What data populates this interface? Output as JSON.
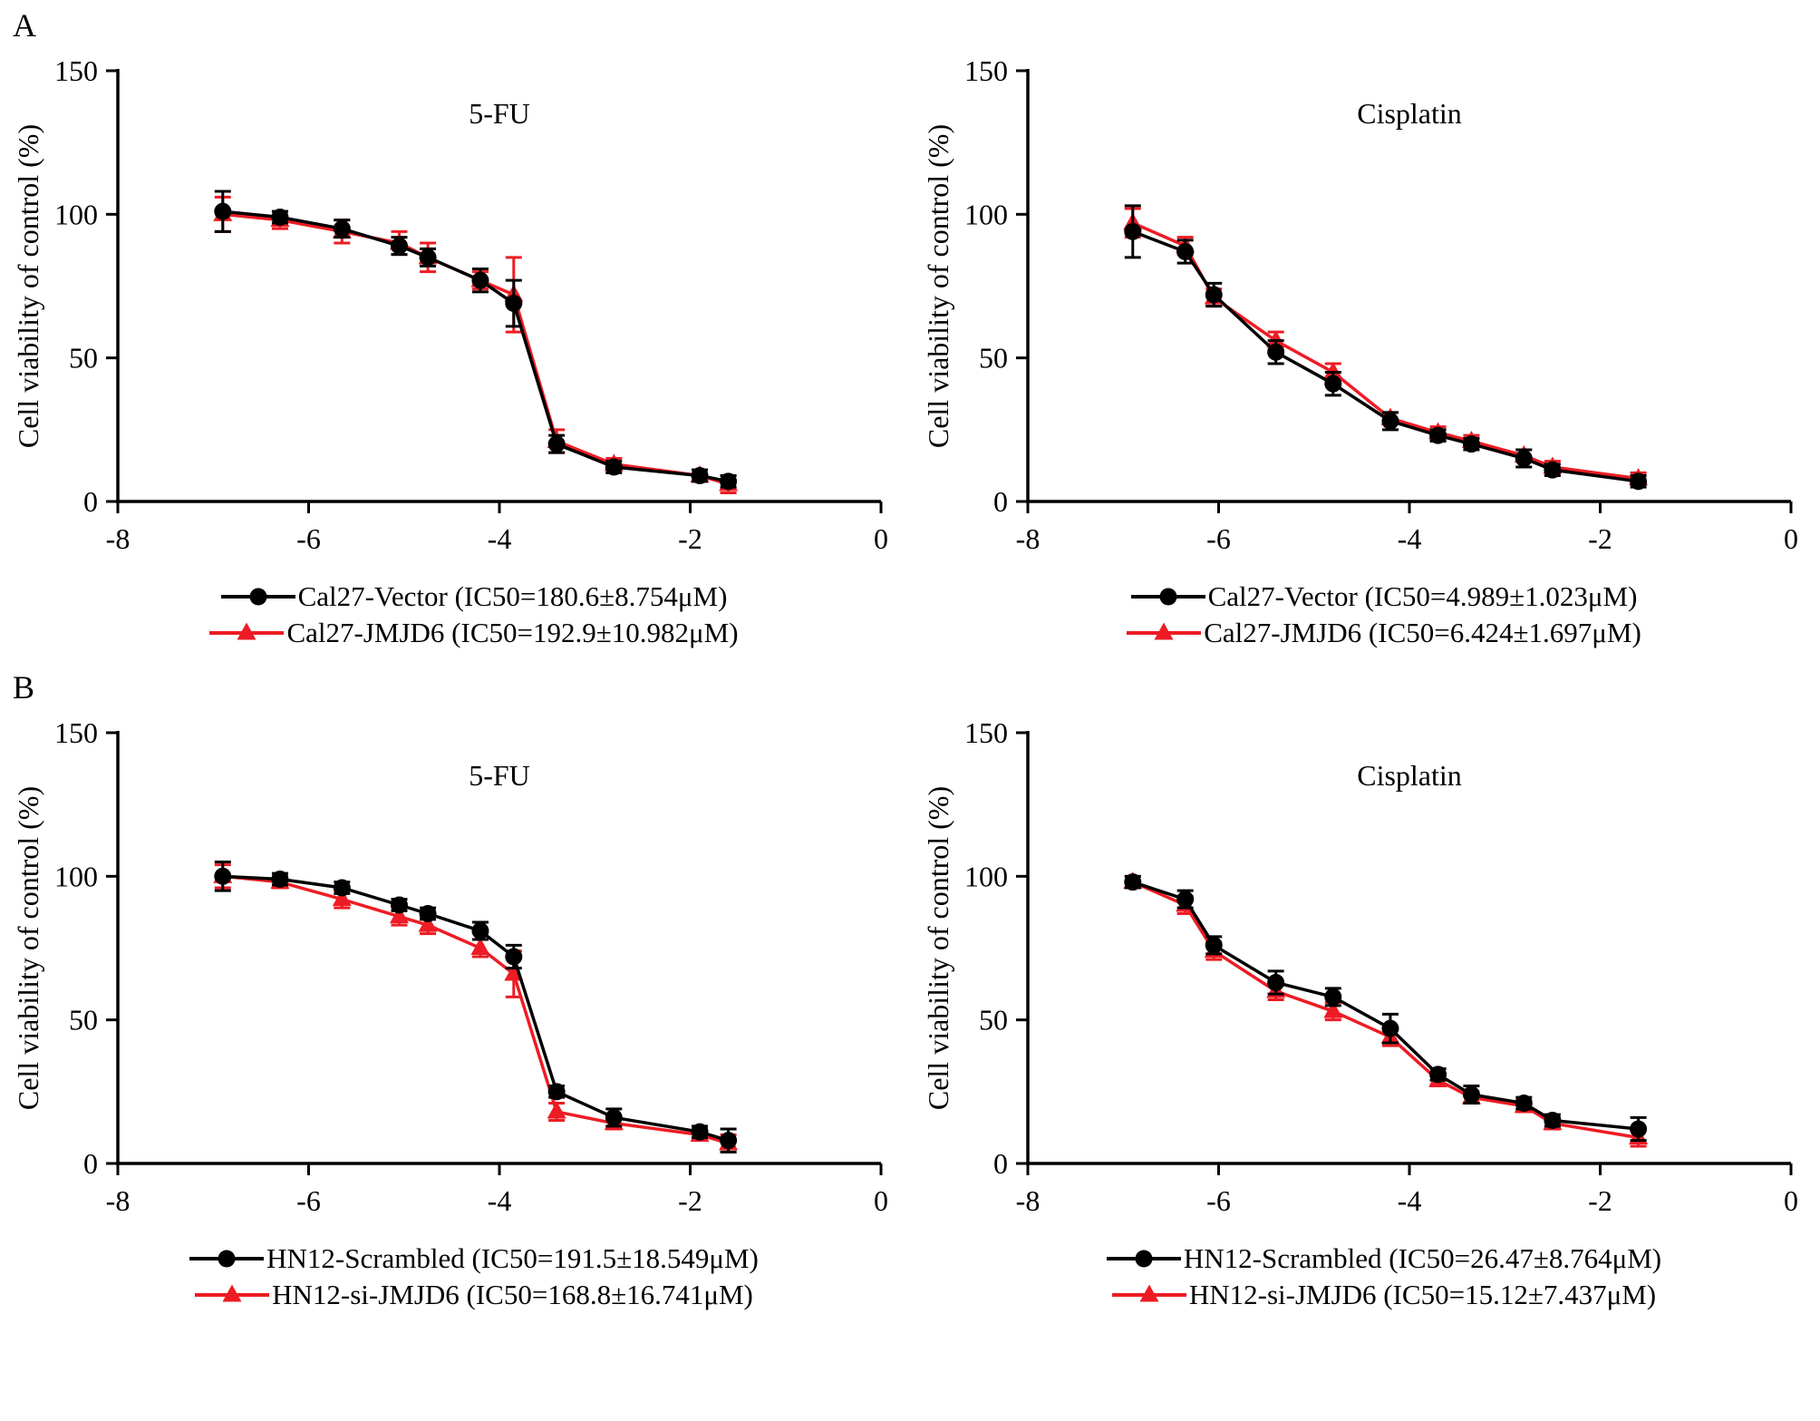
{
  "panels": [
    {
      "label": "A"
    },
    {
      "label": "B"
    }
  ],
  "colors": {
    "series_black": "#000000",
    "series_red": "#ed1c24"
  },
  "chart_data": [
    {
      "type": "line",
      "panel": "A",
      "title": "5-FU",
      "ylabel": "Cell viability of control (%)",
      "xlabel": "",
      "xlim": [
        -8,
        0
      ],
      "ylim": [
        0,
        150
      ],
      "xticks": [
        -8,
        -6,
        -4,
        -2,
        0
      ],
      "yticks": [
        0,
        50,
        100,
        150
      ],
      "grid": false,
      "legend_position": "bottom",
      "series": [
        {
          "name": "Cal27-Vector (IC50=180.6±8.754μM)",
          "color": "#000000",
          "marker": "circle",
          "x": [
            -6.9,
            -6.3,
            -5.65,
            -5.05,
            -4.75,
            -4.2,
            -3.85,
            -3.4,
            -2.8,
            -1.9,
            -1.6
          ],
          "y": [
            101,
            99,
            95,
            89,
            85,
            77,
            69,
            20,
            12,
            9,
            7
          ],
          "yerr": [
            7,
            2,
            3,
            3,
            3,
            4,
            8,
            3,
            2,
            2,
            2
          ]
        },
        {
          "name": "Cal27-JMJD6 (IC50=192.9±10.982μM)",
          "color": "#ed1c24",
          "marker": "triangle",
          "x": [
            -6.9,
            -6.3,
            -5.65,
            -5.05,
            -4.75,
            -4.2,
            -3.85,
            -3.4,
            -2.8,
            -1.9,
            -1.6
          ],
          "y": [
            100,
            98,
            94,
            90,
            85,
            77,
            72,
            21,
            13,
            9,
            6
          ],
          "yerr": [
            6,
            3,
            4,
            4,
            5,
            3,
            13,
            4,
            2,
            2,
            3
          ]
        }
      ]
    },
    {
      "type": "line",
      "panel": "A",
      "title": "Cisplatin",
      "ylabel": "Cell viability of control (%)",
      "xlabel": "",
      "xlim": [
        -8,
        0
      ],
      "ylim": [
        0,
        150
      ],
      "xticks": [
        -8,
        -6,
        -4,
        -2,
        0
      ],
      "yticks": [
        0,
        50,
        100,
        150
      ],
      "grid": false,
      "legend_position": "bottom",
      "series": [
        {
          "name": "Cal27-Vector (IC50=4.989±1.023μM)",
          "color": "#000000",
          "marker": "circle",
          "x": [
            -6.9,
            -6.35,
            -6.05,
            -5.4,
            -4.8,
            -4.2,
            -3.7,
            -3.35,
            -2.8,
            -2.5,
            -1.6
          ],
          "y": [
            94,
            87,
            72,
            52,
            41,
            28,
            23,
            20,
            15,
            11,
            7
          ],
          "yerr": [
            9,
            4,
            4,
            4,
            4,
            3,
            2,
            2,
            3,
            2,
            2
          ]
        },
        {
          "name": "Cal27-JMJD6 (IC50=6.424±1.697μM)",
          "color": "#ed1c24",
          "marker": "triangle",
          "x": [
            -6.9,
            -6.35,
            -6.05,
            -5.4,
            -4.8,
            -4.2,
            -3.7,
            -3.35,
            -2.8,
            -2.5,
            -1.6
          ],
          "y": [
            97,
            89,
            71,
            56,
            45,
            29,
            24,
            21,
            16,
            12,
            8
          ],
          "yerr": [
            5,
            3,
            3,
            3,
            3,
            2,
            2,
            2,
            2,
            2,
            2
          ]
        }
      ]
    },
    {
      "type": "line",
      "panel": "B",
      "title": "5-FU",
      "ylabel": "Cell viability of control (%)",
      "xlabel": "",
      "xlim": [
        -8,
        0
      ],
      "ylim": [
        0,
        150
      ],
      "xticks": [
        -8,
        -6,
        -4,
        -2,
        0
      ],
      "yticks": [
        0,
        50,
        100,
        150
      ],
      "grid": false,
      "legend_position": "bottom",
      "series": [
        {
          "name": "HN12-Scrambled (IC50=191.5±18.549μM)",
          "color": "#000000",
          "marker": "circle",
          "x": [
            -6.9,
            -6.3,
            -5.65,
            -5.05,
            -4.75,
            -4.2,
            -3.85,
            -3.4,
            -2.8,
            -1.9,
            -1.6
          ],
          "y": [
            100,
            99,
            96,
            90,
            87,
            81,
            72,
            25,
            16,
            11,
            8
          ],
          "yerr": [
            5,
            2,
            2,
            2,
            2,
            3,
            4,
            2,
            3,
            2,
            4
          ]
        },
        {
          "name": "HN12-si-JMJD6 (IC50=168.8±16.741μM)",
          "color": "#ed1c24",
          "marker": "triangle",
          "x": [
            -6.9,
            -6.3,
            -5.65,
            -5.05,
            -4.75,
            -4.2,
            -3.85,
            -3.4,
            -2.8,
            -1.9,
            -1.6
          ],
          "y": [
            100,
            98,
            92,
            86,
            83,
            75,
            66,
            18,
            14,
            10,
            7
          ],
          "yerr": [
            4,
            2,
            3,
            3,
            3,
            3,
            8,
            3,
            2,
            2,
            3
          ]
        }
      ]
    },
    {
      "type": "line",
      "panel": "B",
      "title": "Cisplatin",
      "ylabel": "Cell viability of control (%)",
      "xlabel": "",
      "xlim": [
        -8,
        0
      ],
      "ylim": [
        0,
        150
      ],
      "xticks": [
        -8,
        -6,
        -4,
        -2,
        0
      ],
      "yticks": [
        0,
        50,
        100,
        150
      ],
      "grid": false,
      "legend_position": "bottom",
      "series": [
        {
          "name": "HN12-Scrambled (IC50=26.47±8.764μM)",
          "color": "#000000",
          "marker": "circle",
          "x": [
            -6.9,
            -6.35,
            -6.05,
            -5.4,
            -4.8,
            -4.2,
            -3.7,
            -3.35,
            -2.8,
            -2.5,
            -1.6
          ],
          "y": [
            98,
            92,
            76,
            63,
            58,
            47,
            31,
            24,
            21,
            15,
            12
          ],
          "yerr": [
            2,
            3,
            3,
            4,
            3,
            5,
            2,
            3,
            2,
            2,
            4
          ]
        },
        {
          "name": "HN12-si-JMJD6 (IC50=15.12±7.437μM)",
          "color": "#ed1c24",
          "marker": "triangle",
          "x": [
            -6.9,
            -6.35,
            -6.05,
            -5.4,
            -4.8,
            -4.2,
            -3.7,
            -3.35,
            -2.8,
            -2.5,
            -1.6
          ],
          "y": [
            98,
            90,
            74,
            60,
            53,
            44,
            29,
            23,
            20,
            14,
            9
          ],
          "yerr": [
            2,
            3,
            3,
            3,
            3,
            3,
            2,
            2,
            2,
            2,
            3
          ]
        }
      ]
    }
  ]
}
